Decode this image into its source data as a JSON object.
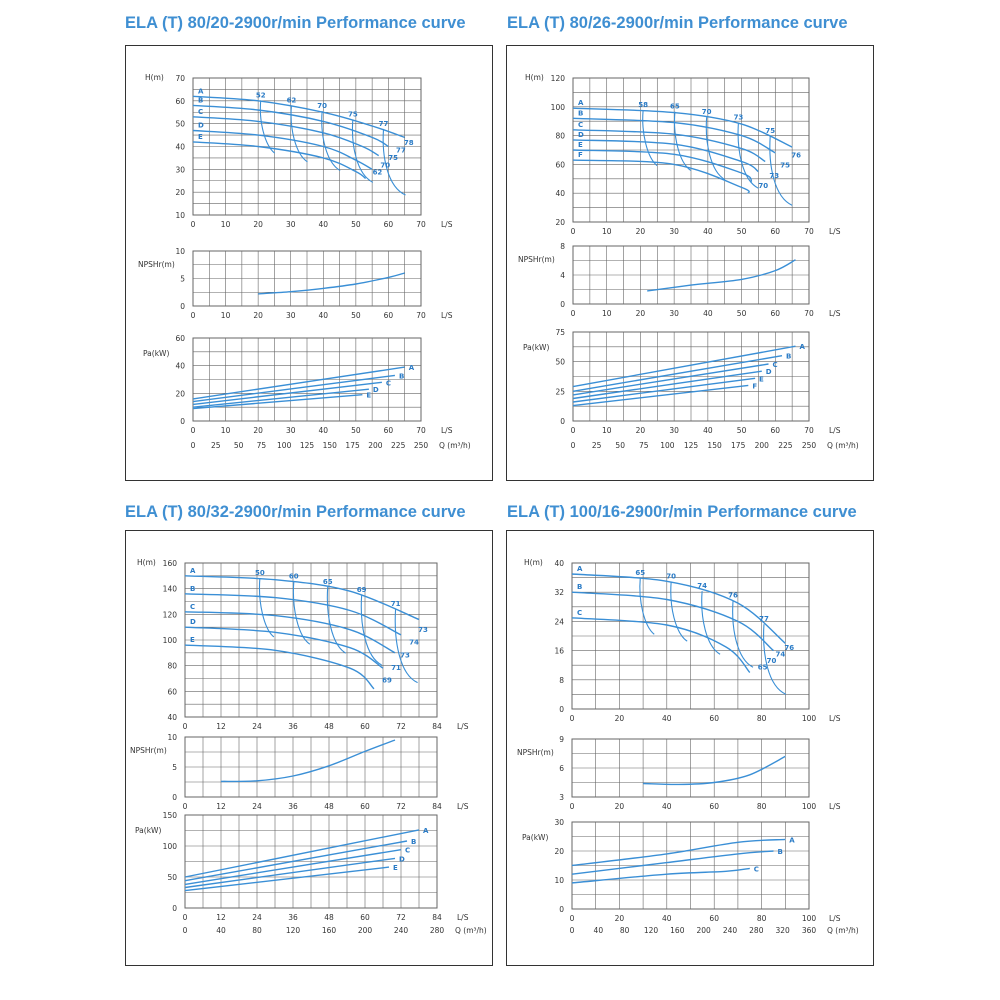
{
  "colors": {
    "curve": "#3a8fd6",
    "grid": "#666666",
    "frame": "#333333",
    "title": "#3f8fd2",
    "label": "#2a7bc6"
  },
  "panels": [
    {
      "title": "ELA (T) 80/20-2900r/min Performance curve"
    },
    {
      "title": "ELA (T)  80/26-2900r/min Performance curve"
    },
    {
      "title": "ELA (T) 80/32-2900r/min Performance curve"
    },
    {
      "title": "ELA (T) 100/16-2900r/min Performance curve"
    }
  ],
  "chart_data": [
    {
      "panel": 0,
      "type": "line",
      "axis_x_label": "L/S",
      "q_label": "Q (m³/h)",
      "ls_ticks": [
        "0",
        "10",
        "20",
        "30",
        "40",
        "50",
        "60",
        "70"
      ],
      "q_ticks": [
        "0",
        "25",
        "50",
        "75",
        "100",
        "125",
        "150",
        "175",
        "200",
        "225",
        "250"
      ],
      "H": {
        "label": "H(m)",
        "xlim": [
          0,
          70
        ],
        "ylim": [
          10,
          70
        ],
        "yticks": [
          10,
          20,
          30,
          40,
          50,
          60,
          70
        ],
        "series": [
          {
            "name": "A",
            "x": [
              0,
              20,
              40,
              55,
              65
            ],
            "y": [
              62,
              60,
              55,
              49,
              44
            ]
          },
          {
            "name": "B",
            "x": [
              0,
              20,
              40,
              55,
              60
            ],
            "y": [
              58,
              56,
              51,
              44,
              40
            ]
          },
          {
            "name": "C",
            "x": [
              0,
              20,
              40,
              52,
              57
            ],
            "y": [
              53,
              51,
              46,
              40,
              36
            ]
          },
          {
            "name": "D",
            "x": [
              0,
              20,
              40,
              50,
              55
            ],
            "y": [
              47,
              45,
              40,
              34,
              30
            ]
          },
          {
            "name": "E",
            "x": [
              0,
              20,
              40,
              50,
              53
            ],
            "y": [
              42,
              40,
              35,
              29,
              26
            ]
          }
        ],
        "eff_labels": [
          "52",
          "62",
          "70",
          "75",
          "77",
          "78",
          "77",
          "75",
          "70",
          "62"
        ]
      },
      "NPSH": {
        "label": "NPSHr(m)",
        "ylim": [
          0,
          10
        ],
        "yticks": [
          0,
          5,
          10
        ],
        "x": [
          20,
          30,
          40,
          50,
          60,
          65
        ],
        "y": [
          2.2,
          2.6,
          3.2,
          4,
          5.2,
          6
        ]
      },
      "P": {
        "label": "Pa(kW)",
        "ylim": [
          0,
          60
        ],
        "yticks": [
          0,
          20,
          40,
          60
        ],
        "series": [
          {
            "name": "A",
            "x": [
              0,
              65
            ],
            "y": [
              16,
              39
            ]
          },
          {
            "name": "B",
            "x": [
              0,
              62
            ],
            "y": [
              14,
              33
            ]
          },
          {
            "name": "C",
            "x": [
              0,
              58
            ],
            "y": [
              12,
              28
            ]
          },
          {
            "name": "D",
            "x": [
              0,
              54
            ],
            "y": [
              10,
              23
            ]
          },
          {
            "name": "E",
            "x": [
              0,
              52
            ],
            "y": [
              9,
              19
            ]
          }
        ]
      }
    },
    {
      "panel": 1,
      "type": "line",
      "axis_x_label": "L/S",
      "q_label": "Q (m³/h)",
      "ls_ticks": [
        "0",
        "10",
        "20",
        "30",
        "40",
        "50",
        "60",
        "70"
      ],
      "q_ticks": [
        "0",
        "25",
        "50",
        "75",
        "100",
        "125",
        "150",
        "175",
        "200",
        "225",
        "250"
      ],
      "H": {
        "label": "H(m)",
        "xlim": [
          0,
          70
        ],
        "ylim": [
          20,
          120
        ],
        "yticks": [
          20,
          40,
          60,
          80,
          100,
          120
        ],
        "series": [
          {
            "name": "A",
            "x": [
              0,
              30,
              50,
              65
            ],
            "y": [
              99,
              96,
              88,
              72
            ]
          },
          {
            "name": "B",
            "x": [
              0,
              30,
              50,
              60
            ],
            "y": [
              92,
              89,
              80,
              68
            ]
          },
          {
            "name": "C",
            "x": [
              0,
              30,
              50,
              57
            ],
            "y": [
              84,
              81,
              71,
              62
            ]
          },
          {
            "name": "D",
            "x": [
              0,
              30,
              50,
              55
            ],
            "y": [
              77,
              74,
              62,
              55
            ]
          },
          {
            "name": "E",
            "x": [
              0,
              30,
              50,
              53
            ],
            "y": [
              70,
              67,
              54,
              48
            ]
          },
          {
            "name": "F",
            "x": [
              0,
              30,
              50,
              52
            ],
            "y": [
              63,
              60,
              44,
              40
            ]
          }
        ],
        "eff_labels": [
          "58",
          "65",
          "70",
          "73",
          "75",
          "76",
          "75",
          "73",
          "70"
        ]
      },
      "NPSH": {
        "label": "NPSHr(m)",
        "ylim": [
          0,
          8
        ],
        "yticks": [
          0,
          4,
          8
        ],
        "x": [
          22,
          35,
          50,
          60,
          66
        ],
        "y": [
          1.8,
          2.6,
          3.4,
          4.6,
          6.1
        ]
      },
      "P": {
        "label": "Pa(kW)",
        "ylim": [
          0,
          75
        ],
        "yticks": [
          0,
          25,
          50,
          75
        ],
        "series": [
          {
            "name": "A",
            "x": [
              0,
              66
            ],
            "y": [
              29,
              63
            ]
          },
          {
            "name": "B",
            "x": [
              0,
              62
            ],
            "y": [
              25,
              55
            ]
          },
          {
            "name": "C",
            "x": [
              0,
              58
            ],
            "y": [
              22,
              48
            ]
          },
          {
            "name": "D",
            "x": [
              0,
              56
            ],
            "y": [
              19,
              42
            ]
          },
          {
            "name": "E",
            "x": [
              0,
              54
            ],
            "y": [
              16,
              36
            ]
          },
          {
            "name": "F",
            "x": [
              0,
              52
            ],
            "y": [
              13,
              30
            ]
          }
        ]
      }
    },
    {
      "panel": 2,
      "type": "line",
      "axis_x_label": "L/S",
      "q_label": "Q (m³/h)",
      "ls_ticks": [
        "0",
        "12",
        "24",
        "36",
        "48",
        "60",
        "72",
        "84"
      ],
      "q_ticks": [
        "0",
        "40",
        "80",
        "120",
        "160",
        "200",
        "240",
        "280"
      ],
      "H": {
        "label": "H(m)",
        "xlim": [
          0,
          84
        ],
        "ylim": [
          40,
          160
        ],
        "yticks": [
          40,
          60,
          80,
          100,
          120,
          140,
          160
        ],
        "series": [
          {
            "name": "A",
            "x": [
              0,
              30,
              55,
              78
            ],
            "y": [
              150,
              147,
              138,
              116
            ]
          },
          {
            "name": "B",
            "x": [
              0,
              30,
              55,
              72
            ],
            "y": [
              136,
              133,
              123,
              104
            ]
          },
          {
            "name": "C",
            "x": [
              0,
              30,
              55,
              70
            ],
            "y": [
              122,
              119,
              108,
              90
            ]
          },
          {
            "name": "D",
            "x": [
              0,
              30,
              55,
              66
            ],
            "y": [
              110,
              106,
              94,
              78
            ]
          },
          {
            "name": "E",
            "x": [
              0,
              30,
              55,
              63
            ],
            "y": [
              96,
              92,
              78,
              62
            ]
          }
        ],
        "eff_labels": [
          "50",
          "60",
          "65",
          "69",
          "71",
          "73",
          "74",
          "73",
          "71",
          "69"
        ]
      },
      "NPSH": {
        "label": "NPSHr(m)",
        "ylim": [
          0,
          10
        ],
        "yticks": [
          0,
          5,
          10
        ],
        "x": [
          12,
          24,
          36,
          48,
          60,
          70
        ],
        "y": [
          2.6,
          2.7,
          3.5,
          5.2,
          7.6,
          9.5
        ]
      },
      "P": {
        "label": "Pa(kW)",
        "ylim": [
          0,
          150
        ],
        "yticks": [
          0,
          50,
          100,
          150
        ],
        "series": [
          {
            "name": "A",
            "x": [
              0,
              78
            ],
            "y": [
              50,
              126
            ]
          },
          {
            "name": "B",
            "x": [
              0,
              74
            ],
            "y": [
              44,
              108
            ]
          },
          {
            "name": "C",
            "x": [
              0,
              72
            ],
            "y": [
              38,
              94
            ]
          },
          {
            "name": "D",
            "x": [
              0,
              70
            ],
            "y": [
              33,
              80
            ]
          },
          {
            "name": "E",
            "x": [
              0,
              68
            ],
            "y": [
              28,
              66
            ]
          }
        ]
      }
    },
    {
      "panel": 3,
      "type": "line",
      "axis_x_label": "L/S",
      "q_label": "Q (m³/h)",
      "ls_ticks": [
        "0",
        "20",
        "40",
        "60",
        "80",
        "100"
      ],
      "q_ticks": [
        "0",
        "40",
        "80",
        "120",
        "160",
        "200",
        "240",
        "280",
        "320",
        "360"
      ],
      "H": {
        "label": "H(m)",
        "xlim": [
          0,
          100
        ],
        "ylim": [
          0,
          40
        ],
        "yticks": [
          0,
          8,
          16,
          24,
          32,
          40
        ],
        "series": [
          {
            "name": "A",
            "x": [
              0,
              40,
              70,
              90
            ],
            "y": [
              37,
              35,
              29,
              18
            ]
          },
          {
            "name": "B",
            "x": [
              0,
              40,
              70,
              85
            ],
            "y": [
              32,
              30,
              24,
              16
            ]
          },
          {
            "name": "C",
            "x": [
              0,
              40,
              65,
              75
            ],
            "y": [
              25,
              23,
              17,
              10
            ]
          }
        ],
        "eff_labels": [
          "65",
          "70",
          "74",
          "76",
          "77",
          "76",
          "74",
          "70",
          "65"
        ]
      },
      "NPSH": {
        "label": "NPSHr(m)",
        "ylim": [
          3,
          9
        ],
        "yticks": [
          3,
          6,
          9
        ],
        "x": [
          30,
          45,
          60,
          75,
          90
        ],
        "y": [
          4.4,
          4.3,
          4.5,
          5.3,
          7.2
        ]
      },
      "P": {
        "label": "Pa(kW)",
        "ylim": [
          0,
          30
        ],
        "yticks": [
          0,
          10,
          20,
          30
        ],
        "series": [
          {
            "name": "A",
            "x": [
              0,
              40,
              70,
              90
            ],
            "y": [
              15,
              19,
              23,
              24
            ]
          },
          {
            "name": "B",
            "x": [
              0,
              40,
              70,
              85
            ],
            "y": [
              12,
              16,
              19,
              20
            ]
          },
          {
            "name": "C",
            "x": [
              0,
              40,
              65,
              75
            ],
            "y": [
              9,
              12,
              13,
              14
            ]
          }
        ]
      }
    }
  ]
}
